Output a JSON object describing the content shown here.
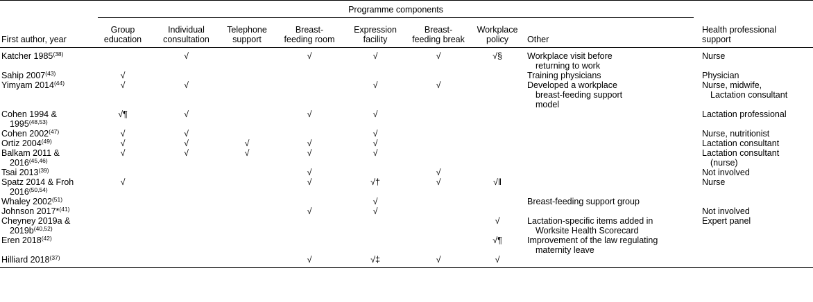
{
  "header": {
    "first_author": "First author, year",
    "programme_components": "Programme components",
    "group_education": [
      "Group",
      "education"
    ],
    "individual_consultation": [
      "Individual",
      "consultation"
    ],
    "telephone_support": [
      "Telephone",
      "support"
    ],
    "breastfeeding_room": [
      "Breast-",
      "feeding room"
    ],
    "expression_facility": [
      "Expression",
      "facility"
    ],
    "breastfeeding_break": [
      "Breast-",
      "feeding break"
    ],
    "workplace_policy": [
      "Workplace",
      "policy"
    ],
    "other": "Other",
    "health_professional": [
      "Health professional",
      "support"
    ]
  },
  "rows": [
    {
      "author": [
        "Katcher 1985"
      ],
      "ref": [
        "(38)"
      ],
      "group": "",
      "indiv": "√",
      "tel": "",
      "room": "√",
      "expr": "√",
      "break": "√",
      "policy": "√§",
      "other": [
        "Workplace visit before",
        "returning to work"
      ],
      "hp": [
        "Nurse"
      ]
    },
    {
      "author": [
        "Sahip 2007"
      ],
      "ref": [
        "(43)"
      ],
      "group": "√",
      "indiv": "",
      "tel": "",
      "room": "",
      "expr": "",
      "break": "",
      "policy": "",
      "other": [
        "Training physicians"
      ],
      "hp": [
        "Physician"
      ]
    },
    {
      "author": [
        "Yimyam 2014"
      ],
      "ref": [
        "(44)"
      ],
      "group": "√",
      "indiv": "√",
      "tel": "",
      "room": "",
      "expr": "√",
      "break": "√",
      "policy": "",
      "other": [
        "Developed a workplace",
        "breast-feeding support",
        "model"
      ],
      "hp": [
        "Nurse, midwife,",
        "Lactation consultant"
      ]
    },
    {
      "author": [
        "Cohen 1994 &",
        "1995"
      ],
      "ref": [
        "",
        "(48,53)"
      ],
      "group": "√¶",
      "indiv": "√",
      "tel": "",
      "room": "√",
      "expr": "√",
      "break": "",
      "policy": "",
      "other": [],
      "hp": [
        "Lactation professional"
      ]
    },
    {
      "author": [
        "Cohen 2002"
      ],
      "ref": [
        "(47)"
      ],
      "group": "√",
      "indiv": "√",
      "tel": "",
      "room": "",
      "expr": "√",
      "break": "",
      "policy": "",
      "other": [],
      "hp": [
        "Nurse, nutritionist"
      ]
    },
    {
      "author": [
        "Ortiz 2004"
      ],
      "ref": [
        "(49)"
      ],
      "group": "√",
      "indiv": "√",
      "tel": "√",
      "room": "√",
      "expr": "√",
      "break": "",
      "policy": "",
      "other": [],
      "hp": [
        "Lactation consultant"
      ]
    },
    {
      "author": [
        "Balkam 2011 &",
        "2016"
      ],
      "ref": [
        "",
        "(45,46)"
      ],
      "group": "√",
      "indiv": "√",
      "tel": "√",
      "room": "√",
      "expr": "√",
      "break": "",
      "policy": "",
      "other": [],
      "hp": [
        "Lactation consultant",
        "(nurse)"
      ]
    },
    {
      "author": [
        "Tsai 2013"
      ],
      "ref": [
        "(39)"
      ],
      "group": "",
      "indiv": "",
      "tel": "",
      "room": "√",
      "expr": "",
      "break": "√",
      "policy": "",
      "other": [],
      "hp": [
        "Not involved"
      ]
    },
    {
      "author": [
        "Spatz 2014 & Froh",
        "2016"
      ],
      "ref": [
        "",
        "(50,54)"
      ],
      "group": "√",
      "indiv": "",
      "tel": "",
      "room": "√",
      "expr": "√†",
      "break": "√",
      "policy": "√‖",
      "other": [],
      "hp": [
        "Nurse"
      ]
    },
    {
      "author": [
        "Whaley 2002"
      ],
      "ref": [
        "(51)"
      ],
      "group": "",
      "indiv": "",
      "tel": "",
      "room": "",
      "expr": "√",
      "break": "",
      "policy": "",
      "other": [
        "Breast-feeding support group"
      ],
      "hp": []
    },
    {
      "author": [
        "Johnson 2017*"
      ],
      "ref": [
        "(41)"
      ],
      "group": "",
      "indiv": "",
      "tel": "",
      "room": "√",
      "expr": "√",
      "break": "",
      "policy": "",
      "other": [],
      "hp": [
        "Not involved"
      ]
    },
    {
      "author": [
        "Cheyney 2019a &",
        "2019b"
      ],
      "ref": [
        "",
        "(40,52)"
      ],
      "group": "",
      "indiv": "",
      "tel": "",
      "room": "",
      "expr": "",
      "break": "",
      "policy": "√",
      "other": [
        "Lactation-specific items added in",
        "Worksite Health Scorecard"
      ],
      "hp": [
        "Expert panel"
      ]
    },
    {
      "author": [
        "Eren 2018"
      ],
      "ref": [
        "(42)"
      ],
      "group": "",
      "indiv": "",
      "tel": "",
      "room": "",
      "expr": "",
      "break": "",
      "policy": "√¶",
      "other": [
        "Improvement of the law regulating",
        "maternity leave"
      ],
      "hp": []
    },
    {
      "author": [
        "Hilliard 2018"
      ],
      "ref": [
        "(37)"
      ],
      "group": "",
      "indiv": "",
      "tel": "",
      "room": "√",
      "expr": "√‡",
      "break": "√",
      "policy": "√",
      "other": [],
      "hp": []
    }
  ]
}
